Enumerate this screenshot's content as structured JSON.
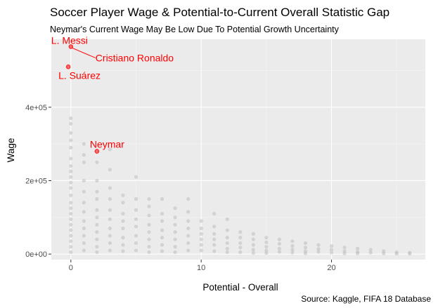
{
  "chart_data": {
    "type": "scatter",
    "title": "Soccer Player Wage & Potential-to-Current Overall Statistic Gap",
    "subtitle": "Neymar's Current Wage May Be Low Due To Potential Growth Uncertainty",
    "xlabel": "Potential - Overall",
    "ylabel": "Wage",
    "caption": "Source: Kaggle, FIFA 18 Database",
    "xlim": [
      -1.5,
      27.2
    ],
    "ylim": [
      -15000,
      585000
    ],
    "x_ticks": [
      0,
      10,
      20
    ],
    "x_tick_labels": [
      "0",
      "10",
      "20"
    ],
    "y_ticks": [
      0,
      200000,
      400000
    ],
    "y_tick_labels": [
      "0e+00",
      "2e+05",
      "4e+05"
    ],
    "grid": true,
    "legend": "none",
    "colors": {
      "panel_background": "#ebebeb",
      "grid_major": "#ffffff",
      "grid_minor": "#f5f5f5",
      "points": "#bebebe",
      "highlight": "#ff0000"
    },
    "highlighted_points": [
      {
        "label": "L. Messi",
        "x": 0,
        "y": 565000
      },
      {
        "label": "Cristiano Ronaldo",
        "x": 0,
        "y": 565000
      },
      {
        "label": "L. Suárez",
        "x": -0.2,
        "y": 510000
      },
      {
        "label": "Neymar",
        "x": 2,
        "y": 280000
      }
    ],
    "background_points": [
      [
        0,
        370000
      ],
      [
        0,
        355000
      ],
      [
        0,
        330000
      ],
      [
        0,
        310000
      ],
      [
        0,
        290000
      ],
      [
        0,
        260000
      ],
      [
        0,
        240000
      ],
      [
        0,
        225000
      ],
      [
        0,
        210000
      ],
      [
        0,
        195000
      ],
      [
        0,
        180000
      ],
      [
        0,
        160000
      ],
      [
        0,
        140000
      ],
      [
        0,
        125000
      ],
      [
        0,
        110000
      ],
      [
        0,
        95000
      ],
      [
        0,
        80000
      ],
      [
        0,
        65000
      ],
      [
        0,
        50000
      ],
      [
        0,
        35000
      ],
      [
        0,
        20000
      ],
      [
        0,
        5000
      ],
      [
        1,
        300000
      ],
      [
        1,
        270000
      ],
      [
        1,
        250000
      ],
      [
        1,
        200000
      ],
      [
        1,
        170000
      ],
      [
        1,
        140000
      ],
      [
        1,
        115000
      ],
      [
        1,
        90000
      ],
      [
        1,
        70000
      ],
      [
        1,
        50000
      ],
      [
        1,
        30000
      ],
      [
        1,
        10000
      ],
      [
        2,
        250000
      ],
      [
        2,
        200000
      ],
      [
        2,
        170000
      ],
      [
        2,
        150000
      ],
      [
        2,
        120000
      ],
      [
        2,
        100000
      ],
      [
        2,
        80000
      ],
      [
        2,
        60000
      ],
      [
        2,
        40000
      ],
      [
        2,
        20000
      ],
      [
        2,
        5000
      ],
      [
        3,
        285000
      ],
      [
        3,
        230000
      ],
      [
        3,
        180000
      ],
      [
        3,
        150000
      ],
      [
        3,
        120000
      ],
      [
        3,
        95000
      ],
      [
        3,
        70000
      ],
      [
        3,
        50000
      ],
      [
        3,
        30000
      ],
      [
        3,
        10000
      ],
      [
        4,
        160000
      ],
      [
        4,
        140000
      ],
      [
        4,
        110000
      ],
      [
        4,
        90000
      ],
      [
        4,
        70000
      ],
      [
        4,
        45000
      ],
      [
        4,
        25000
      ],
      [
        4,
        8000
      ],
      [
        5,
        210000
      ],
      [
        5,
        150000
      ],
      [
        5,
        120000
      ],
      [
        5,
        95000
      ],
      [
        5,
        75000
      ],
      [
        5,
        50000
      ],
      [
        5,
        30000
      ],
      [
        5,
        10000
      ],
      [
        6,
        150000
      ],
      [
        6,
        130000
      ],
      [
        6,
        105000
      ],
      [
        6,
        80000
      ],
      [
        6,
        60000
      ],
      [
        6,
        40000
      ],
      [
        6,
        20000
      ],
      [
        6,
        5000
      ],
      [
        7,
        150000
      ],
      [
        7,
        110000
      ],
      [
        7,
        90000
      ],
      [
        7,
        65000
      ],
      [
        7,
        45000
      ],
      [
        7,
        25000
      ],
      [
        7,
        8000
      ],
      [
        8,
        125000
      ],
      [
        8,
        100000
      ],
      [
        8,
        80000
      ],
      [
        8,
        60000
      ],
      [
        8,
        40000
      ],
      [
        8,
        20000
      ],
      [
        8,
        5000
      ],
      [
        9,
        150000
      ],
      [
        9,
        115000
      ],
      [
        9,
        90000
      ],
      [
        9,
        70000
      ],
      [
        9,
        50000
      ],
      [
        9,
        30000
      ],
      [
        9,
        10000
      ],
      [
        10,
        90000
      ],
      [
        10,
        70000
      ],
      [
        10,
        55000
      ],
      [
        10,
        40000
      ],
      [
        10,
        25000
      ],
      [
        10,
        10000
      ],
      [
        11,
        110000
      ],
      [
        11,
        75000
      ],
      [
        11,
        55000
      ],
      [
        11,
        40000
      ],
      [
        11,
        25000
      ],
      [
        11,
        8000
      ],
      [
        12,
        95000
      ],
      [
        12,
        65000
      ],
      [
        12,
        45000
      ],
      [
        12,
        30000
      ],
      [
        12,
        15000
      ],
      [
        12,
        5000
      ],
      [
        13,
        60000
      ],
      [
        13,
        45000
      ],
      [
        13,
        30000
      ],
      [
        13,
        18000
      ],
      [
        13,
        5000
      ],
      [
        14,
        55000
      ],
      [
        14,
        40000
      ],
      [
        14,
        25000
      ],
      [
        14,
        12000
      ],
      [
        14,
        3000
      ],
      [
        15,
        45000
      ],
      [
        15,
        32000
      ],
      [
        15,
        20000
      ],
      [
        15,
        10000
      ],
      [
        15,
        3000
      ],
      [
        16,
        40000
      ],
      [
        16,
        28000
      ],
      [
        16,
        15000
      ],
      [
        16,
        6000
      ],
      [
        17,
        35000
      ],
      [
        17,
        22000
      ],
      [
        17,
        12000
      ],
      [
        17,
        4000
      ],
      [
        18,
        30000
      ],
      [
        18,
        18000
      ],
      [
        18,
        8000
      ],
      [
        18,
        2000
      ],
      [
        19,
        25000
      ],
      [
        19,
        14000
      ],
      [
        19,
        6000
      ],
      [
        20,
        22000
      ],
      [
        20,
        12000
      ],
      [
        20,
        4000
      ],
      [
        21,
        18000
      ],
      [
        21,
        8000
      ],
      [
        21,
        2000
      ],
      [
        22,
        15000
      ],
      [
        22,
        6000
      ],
      [
        22,
        2000
      ],
      [
        23,
        12000
      ],
      [
        23,
        4000
      ],
      [
        24,
        8000
      ],
      [
        24,
        2000
      ],
      [
        25,
        5000
      ],
      [
        25,
        1000
      ],
      [
        26,
        4000
      ],
      [
        26,
        1000
      ]
    ]
  }
}
